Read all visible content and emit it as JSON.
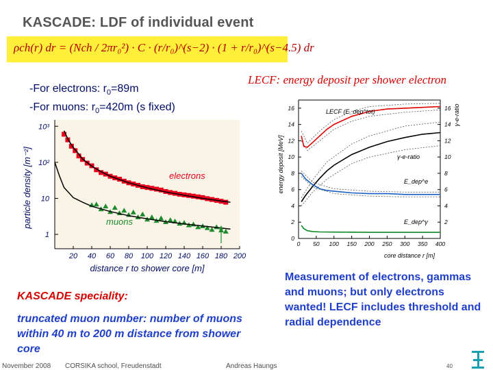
{
  "slide": {
    "title": "KASCADE: LDF of individual event",
    "formula": "ρch(r) dr = (Nch / 2πr₀²) · C · (r/r₀)^(s−2) · (1 + r/r₀)^(s−4.5) dr",
    "bullets": {
      "electrons_prefix": "-For electrons: r",
      "electrons_sub": "0",
      "electrons_suffix": "=89m",
      "muons_prefix": "-For muons: r",
      "muons_sub": "0",
      "muons_suffix": "=420m (s fixed)"
    },
    "lecf_title": "LECF: energy deposit per shower electron",
    "speciality_heading": "KASCADE speciality:",
    "speciality_text": "truncated muon number: number of muons within 40 m to 200 m distance from shower core",
    "measurement_text": "Measurement of electrons, gammas and muons; but only electrons wanted! LECF includes threshold and radial dependence",
    "footer": {
      "left": "November 2008",
      "center": "CORSIKA school, Freudenstadt",
      "right": "Andreas Haungs",
      "page": "40"
    },
    "colors": {
      "title": "#555555",
      "formula_bg": "#ffef3a",
      "red": "#d40000",
      "blue_text": "#1f3fc8",
      "navy": "#000c66"
    }
  },
  "chart_data": [
    {
      "type": "scatter",
      "title": "",
      "xlabel": "distance r to shower core [m]",
      "ylabel": "particle density [m⁻²]",
      "x_scale": "linear",
      "y_scale": "log",
      "xlim": [
        0,
        200
      ],
      "ylim": [
        0.4,
        1500
      ],
      "x_ticks": [
        "20",
        "40",
        "60",
        "80",
        "100",
        "120",
        "140",
        "160",
        "180",
        "200"
      ],
      "y_ticks": [
        "10³",
        "10²",
        "10",
        "1"
      ],
      "annotations": [
        "electrons",
        "muons"
      ],
      "series": [
        {
          "name": "electrons",
          "marker": "square",
          "color": "#e8001c",
          "x": [
            10,
            14,
            18,
            22,
            26,
            30,
            35,
            40,
            45,
            50,
            55,
            60,
            65,
            70,
            75,
            80,
            85,
            90,
            95,
            100,
            105,
            110,
            115,
            120,
            125,
            130,
            135,
            140,
            145,
            150,
            155,
            160,
            165,
            170,
            175,
            180,
            185
          ],
          "y": [
            600,
            420,
            280,
            210,
            150,
            120,
            95,
            80,
            62,
            52,
            47,
            41,
            37,
            34,
            30,
            27,
            25,
            23,
            21,
            20,
            19,
            18,
            17,
            15.5,
            14.5,
            13.8,
            13,
            12.5,
            12,
            11.5,
            11,
            10.5,
            9.8,
            9.3,
            8.8,
            8.3,
            7.8
          ]
        },
        {
          "name": "electrons fit",
          "marker": "line",
          "color": "#000000",
          "x": [
            10,
            15,
            20,
            30,
            40,
            50,
            60,
            80,
            100,
            120,
            140,
            160,
            180,
            190
          ],
          "y": [
            750,
            400,
            260,
            125,
            78,
            55,
            41,
            27,
            19.5,
            15,
            12.2,
            10,
            8.4,
            7.8
          ]
        },
        {
          "name": "muons",
          "marker": "triangle",
          "color": "#1e8a2e",
          "x": [
            40,
            45,
            50,
            55,
            60,
            65,
            70,
            75,
            80,
            85,
            90,
            95,
            100,
            105,
            110,
            115,
            120,
            125,
            130,
            135,
            140,
            145,
            150,
            155,
            160,
            165,
            170,
            175,
            180,
            185
          ],
          "y": [
            6.5,
            6.8,
            5,
            6,
            4.2,
            5.5,
            3.9,
            4.6,
            3.5,
            4.1,
            3.0,
            3.6,
            2.6,
            3.0,
            2.4,
            2.8,
            2.2,
            2.5,
            2.3,
            2.0,
            2.1,
            1.8,
            1.9,
            1.6,
            1.7,
            1.5,
            1.35,
            1.6,
            1.3,
            1.2
          ]
        },
        {
          "name": "muons fit",
          "marker": "line",
          "color": "#000000",
          "x": [
            0,
            5,
            10,
            20,
            30,
            40,
            60,
            80,
            100,
            120,
            140,
            160,
            180,
            190
          ],
          "y": [
            100,
            42,
            20,
            10.5,
            7.8,
            6.0,
            4.3,
            3.3,
            2.7,
            2.25,
            1.95,
            1.7,
            1.5,
            1.4
          ]
        }
      ]
    },
    {
      "type": "line",
      "title": "",
      "xlabel": "core distance r [m]",
      "ylabel": "energy deposit [MeV]",
      "ylabel_right": "γ-e-ratio",
      "xlim": [
        0,
        400
      ],
      "ylim": [
        0,
        17
      ],
      "ylim_right": [
        0,
        17
      ],
      "x_ticks": [
        "0",
        "50",
        "100",
        "150",
        "200",
        "250",
        "300",
        "350",
        "400"
      ],
      "y_ticks": [
        "0",
        "2",
        "4",
        "6",
        "8",
        "10",
        "12",
        "14",
        "16"
      ],
      "y_ticks_right": [
        "2",
        "4",
        "6",
        "8",
        "10",
        "12",
        "14",
        "16"
      ],
      "annotations": [
        "LECF (E_dep^tot)",
        "γ-e-ratio",
        "E_dep^e",
        "E_dep^γ"
      ],
      "series": [
        {
          "name": "LECF (E_dep^tot)",
          "color": "#e00000",
          "dashed": false,
          "x": [
            8,
            15,
            25,
            40,
            60,
            80,
            100,
            150,
            200,
            250,
            300,
            350,
            400
          ],
          "y": [
            12.6,
            11.3,
            11.2,
            11.8,
            12.6,
            13.4,
            14.0,
            15.0,
            15.6,
            15.9,
            16.0,
            16.1,
            16.2
          ]
        },
        {
          "name": "LECF upper",
          "color": "#555555",
          "dashed": true,
          "x": [
            8,
            25,
            60,
            100,
            150,
            200,
            300,
            400
          ],
          "y": [
            13.2,
            11.7,
            13.2,
            14.6,
            15.6,
            16.2,
            16.5,
            16.6
          ]
        },
        {
          "name": "LECF lower",
          "color": "#555555",
          "dashed": true,
          "x": [
            8,
            25,
            60,
            100,
            150,
            200,
            300,
            400
          ],
          "y": [
            12.0,
            10.8,
            12.0,
            13.4,
            14.4,
            15.0,
            15.5,
            15.8
          ]
        },
        {
          "name": "γ-e-ratio",
          "color": "#000000",
          "dashed": false,
          "x": [
            8,
            20,
            40,
            60,
            80,
            100,
            150,
            200,
            250,
            300,
            350,
            400
          ],
          "y": [
            4.5,
            5.3,
            6.4,
            7.4,
            8.3,
            9.0,
            10.3,
            11.2,
            11.9,
            12.4,
            12.8,
            13.0
          ]
        },
        {
          "name": "γ-e upper",
          "color": "#555555",
          "dashed": true,
          "x": [
            8,
            40,
            80,
            150,
            200,
            300,
            400
          ],
          "y": [
            5.0,
            7.2,
            9.4,
            11.6,
            12.6,
            13.8,
            14.3
          ]
        },
        {
          "name": "γ-e lower",
          "color": "#555555",
          "dashed": true,
          "x": [
            8,
            40,
            80,
            150,
            200,
            300,
            400
          ],
          "y": [
            4.0,
            5.7,
            7.3,
            9.2,
            10.0,
            10.9,
            11.4
          ]
        },
        {
          "name": "E_dep^e",
          "color": "#1a5fc4",
          "dashed": false,
          "x": [
            8,
            20,
            40,
            60,
            80,
            100,
            150,
            200,
            250,
            300,
            350,
            400
          ],
          "y": [
            8.0,
            7.3,
            6.6,
            6.1,
            5.9,
            5.8,
            5.6,
            5.5,
            5.5,
            5.4,
            5.4,
            5.4
          ]
        },
        {
          "name": "E_dep^e upper",
          "color": "#555555",
          "dashed": true,
          "x": [
            8,
            40,
            100,
            200,
            300,
            400
          ],
          "y": [
            8.3,
            6.9,
            6.1,
            5.8,
            5.7,
            5.7
          ]
        },
        {
          "name": "E_dep^e lower",
          "color": "#555555",
          "dashed": true,
          "x": [
            8,
            40,
            100,
            200,
            300,
            400
          ],
          "y": [
            7.6,
            6.3,
            5.5,
            5.2,
            5.1,
            5.1
          ]
        },
        {
          "name": "E_dep^γ",
          "color": "#0a8a1e",
          "dashed": false,
          "x": [
            8,
            15,
            25,
            40,
            60,
            100,
            200,
            300,
            400
          ],
          "y": [
            1.6,
            1.2,
            0.95,
            0.85,
            0.8,
            0.78,
            0.75,
            0.75,
            0.75
          ]
        }
      ]
    }
  ]
}
